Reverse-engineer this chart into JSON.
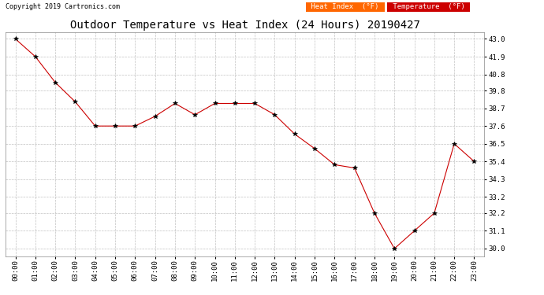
{
  "title": "Outdoor Temperature vs Heat Index (24 Hours) 20190427",
  "copyright": "Copyright 2019 Cartronics.com",
  "x_labels": [
    "00:00",
    "01:00",
    "02:00",
    "03:00",
    "04:00",
    "05:00",
    "06:00",
    "07:00",
    "08:00",
    "09:00",
    "10:00",
    "11:00",
    "12:00",
    "13:00",
    "14:00",
    "15:00",
    "16:00",
    "17:00",
    "18:00",
    "19:00",
    "20:00",
    "21:00",
    "22:00",
    "23:00"
  ],
  "temperature": [
    43.0,
    41.9,
    40.3,
    39.1,
    37.6,
    37.6,
    37.6,
    38.2,
    39.0,
    38.3,
    39.0,
    39.0,
    39.0,
    38.3,
    37.1,
    36.2,
    35.2,
    35.0,
    32.2,
    30.0,
    31.1,
    32.2,
    36.5,
    35.4
  ],
  "heat_index": [
    43.0,
    41.9,
    40.3,
    39.1,
    37.6,
    37.6,
    37.6,
    38.2,
    39.0,
    38.3,
    39.0,
    39.0,
    39.0,
    38.3,
    37.1,
    36.2,
    35.2,
    35.0,
    32.2,
    30.0,
    31.1,
    32.2,
    36.5,
    35.4
  ],
  "ylim_min": 29.5,
  "ylim_max": 43.4,
  "yticks": [
    30.0,
    31.1,
    32.2,
    33.2,
    34.3,
    35.4,
    36.5,
    37.6,
    38.7,
    39.8,
    40.8,
    41.9,
    43.0
  ],
  "line_color": "#cc0000",
  "marker_color": "#000000",
  "bg_color": "#ffffff",
  "grid_color": "#bbbbbb",
  "legend_heat_bg": "#ff6600",
  "legend_temp_bg": "#cc0000",
  "legend_text_color": "#ffffff",
  "title_fontsize": 10,
  "tick_fontsize": 6.5,
  "copyright_fontsize": 6
}
